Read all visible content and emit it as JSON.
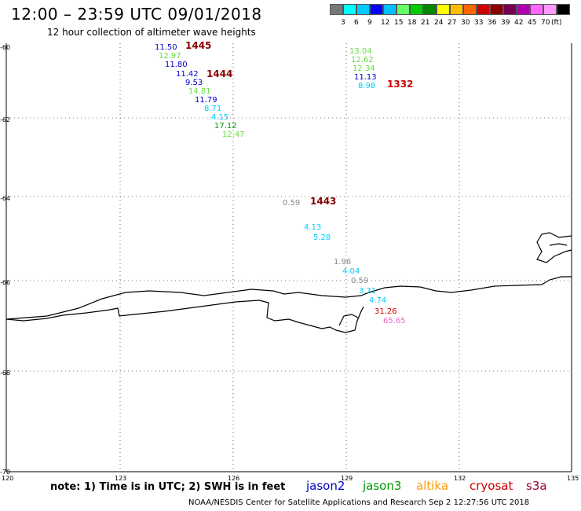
{
  "header": {
    "title": "12:00 – 23:59 UTC 09/01/2018",
    "subtitle": "12 hour collection of altimeter wave heights"
  },
  "scale": {
    "colors": [
      "#777777",
      "#00ffff",
      "#00ccff",
      "#0000ff",
      "#00bfff",
      "#66ff66",
      "#00cc00",
      "#008800",
      "#ffff00",
      "#ffbb00",
      "#ff6600",
      "#cc0000",
      "#8b0000",
      "#770055",
      "#b000b0",
      "#ff66ff",
      "#ff99ff",
      "#000000"
    ],
    "labels": [
      "3",
      "6",
      "9",
      "12",
      "15",
      "18",
      "21",
      "24",
      "27",
      "30",
      "33",
      "36",
      "39",
      "42",
      "45",
      "70",
      "(ft)"
    ]
  },
  "axes": {
    "lat_labels": [
      "-60",
      "-62",
      "-64",
      "-66",
      "-68",
      "-70"
    ],
    "lon_labels": [
      "120",
      "123",
      "126",
      "129",
      "132",
      "135"
    ]
  },
  "colors": {
    "jason2": "#0000cc",
    "jason3": "#009900",
    "altika": "#ff9900",
    "cryosat": "#cc0000",
    "s3a": "#990033",
    "green_light": "#66dd44",
    "cyan": "#00ccff",
    "gray": "#888888",
    "pink": "#ee66cc",
    "darkred": "#880000"
  },
  "observations": [
    {
      "text": "11.50",
      "color": "#0000cc"
    },
    {
      "text": "1445",
      "color": "#880000"
    },
    {
      "text": "12.97",
      "color": "#66dd44"
    },
    {
      "text": "11.80",
      "color": "#0000cc"
    },
    {
      "text": "11.42",
      "color": "#0000cc"
    },
    {
      "text": "1444",
      "color": "#880000"
    },
    {
      "text": "9.53",
      "color": "#0000cc"
    },
    {
      "text": "14.81",
      "color": "#66dd44"
    },
    {
      "text": "11.79",
      "color": "#0000cc"
    },
    {
      "text": "8.71",
      "color": "#00ccff"
    },
    {
      "text": "4.15",
      "color": "#00ccff"
    },
    {
      "text": "17.12",
      "color": "#009900"
    },
    {
      "text": "12.47",
      "color": "#66dd44"
    },
    {
      "text": "13.04",
      "color": "#66dd44"
    },
    {
      "text": "12.62",
      "color": "#66dd44"
    },
    {
      "text": "12.34",
      "color": "#66dd44"
    },
    {
      "text": "11.13",
      "color": "#0000cc"
    },
    {
      "text": "8.98",
      "color": "#00ccff"
    },
    {
      "text": "1332",
      "color": "#cc0000"
    },
    {
      "text": "0.59",
      "color": "#888888"
    },
    {
      "text": "1443",
      "color": "#880000"
    },
    {
      "text": "4.13",
      "color": "#00ccff"
    },
    {
      "text": "5.28",
      "color": "#00ccff"
    },
    {
      "text": "1.96",
      "color": "#888888"
    },
    {
      "text": "4.04",
      "color": "#00ccff"
    },
    {
      "text": "0.59",
      "color": "#888888"
    },
    {
      "text": "3.71",
      "color": "#00ccff"
    },
    {
      "text": "4.74",
      "color": "#00ccff"
    },
    {
      "text": "31.26",
      "color": "#cc0000"
    },
    {
      "text": "65.65",
      "color": "#ee66cc"
    }
  ],
  "footer": {
    "note": "note: 1) Time is in UTC; 2) SWH is in feet",
    "sats": [
      "jason2",
      "jason3",
      "altika",
      "cryosat",
      "s3a"
    ],
    "credit": "NOAA/NESDIS Center for Satellite Applications and Research   Sep  2 12:27:56 UTC 2018"
  }
}
